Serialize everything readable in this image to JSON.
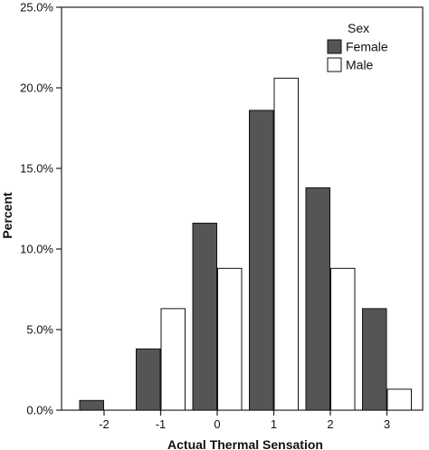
{
  "chart_data": {
    "type": "bar",
    "title": "",
    "xlabel": "Actual Thermal Sensation",
    "ylabel": "Percent",
    "categories": [
      "-2",
      "-1",
      "0",
      "1",
      "2",
      "3"
    ],
    "series": [
      {
        "name": "Female",
        "values": [
          0.6,
          3.8,
          11.6,
          18.6,
          13.8,
          6.3
        ],
        "color": "#555555"
      },
      {
        "name": "Male",
        "values": [
          0.0,
          6.3,
          8.8,
          20.6,
          8.8,
          1.3
        ],
        "color": "#ffffff"
      }
    ],
    "ylim": [
      0,
      25
    ],
    "yticks": [
      "0.0%",
      "5.0%",
      "10.0%",
      "15.0%",
      "20.0%",
      "25.0%"
    ],
    "ytick_values": [
      0,
      5,
      10,
      15,
      20,
      25
    ],
    "legend": {
      "title": "Sex",
      "placement": "top-right"
    },
    "grid": false
  }
}
